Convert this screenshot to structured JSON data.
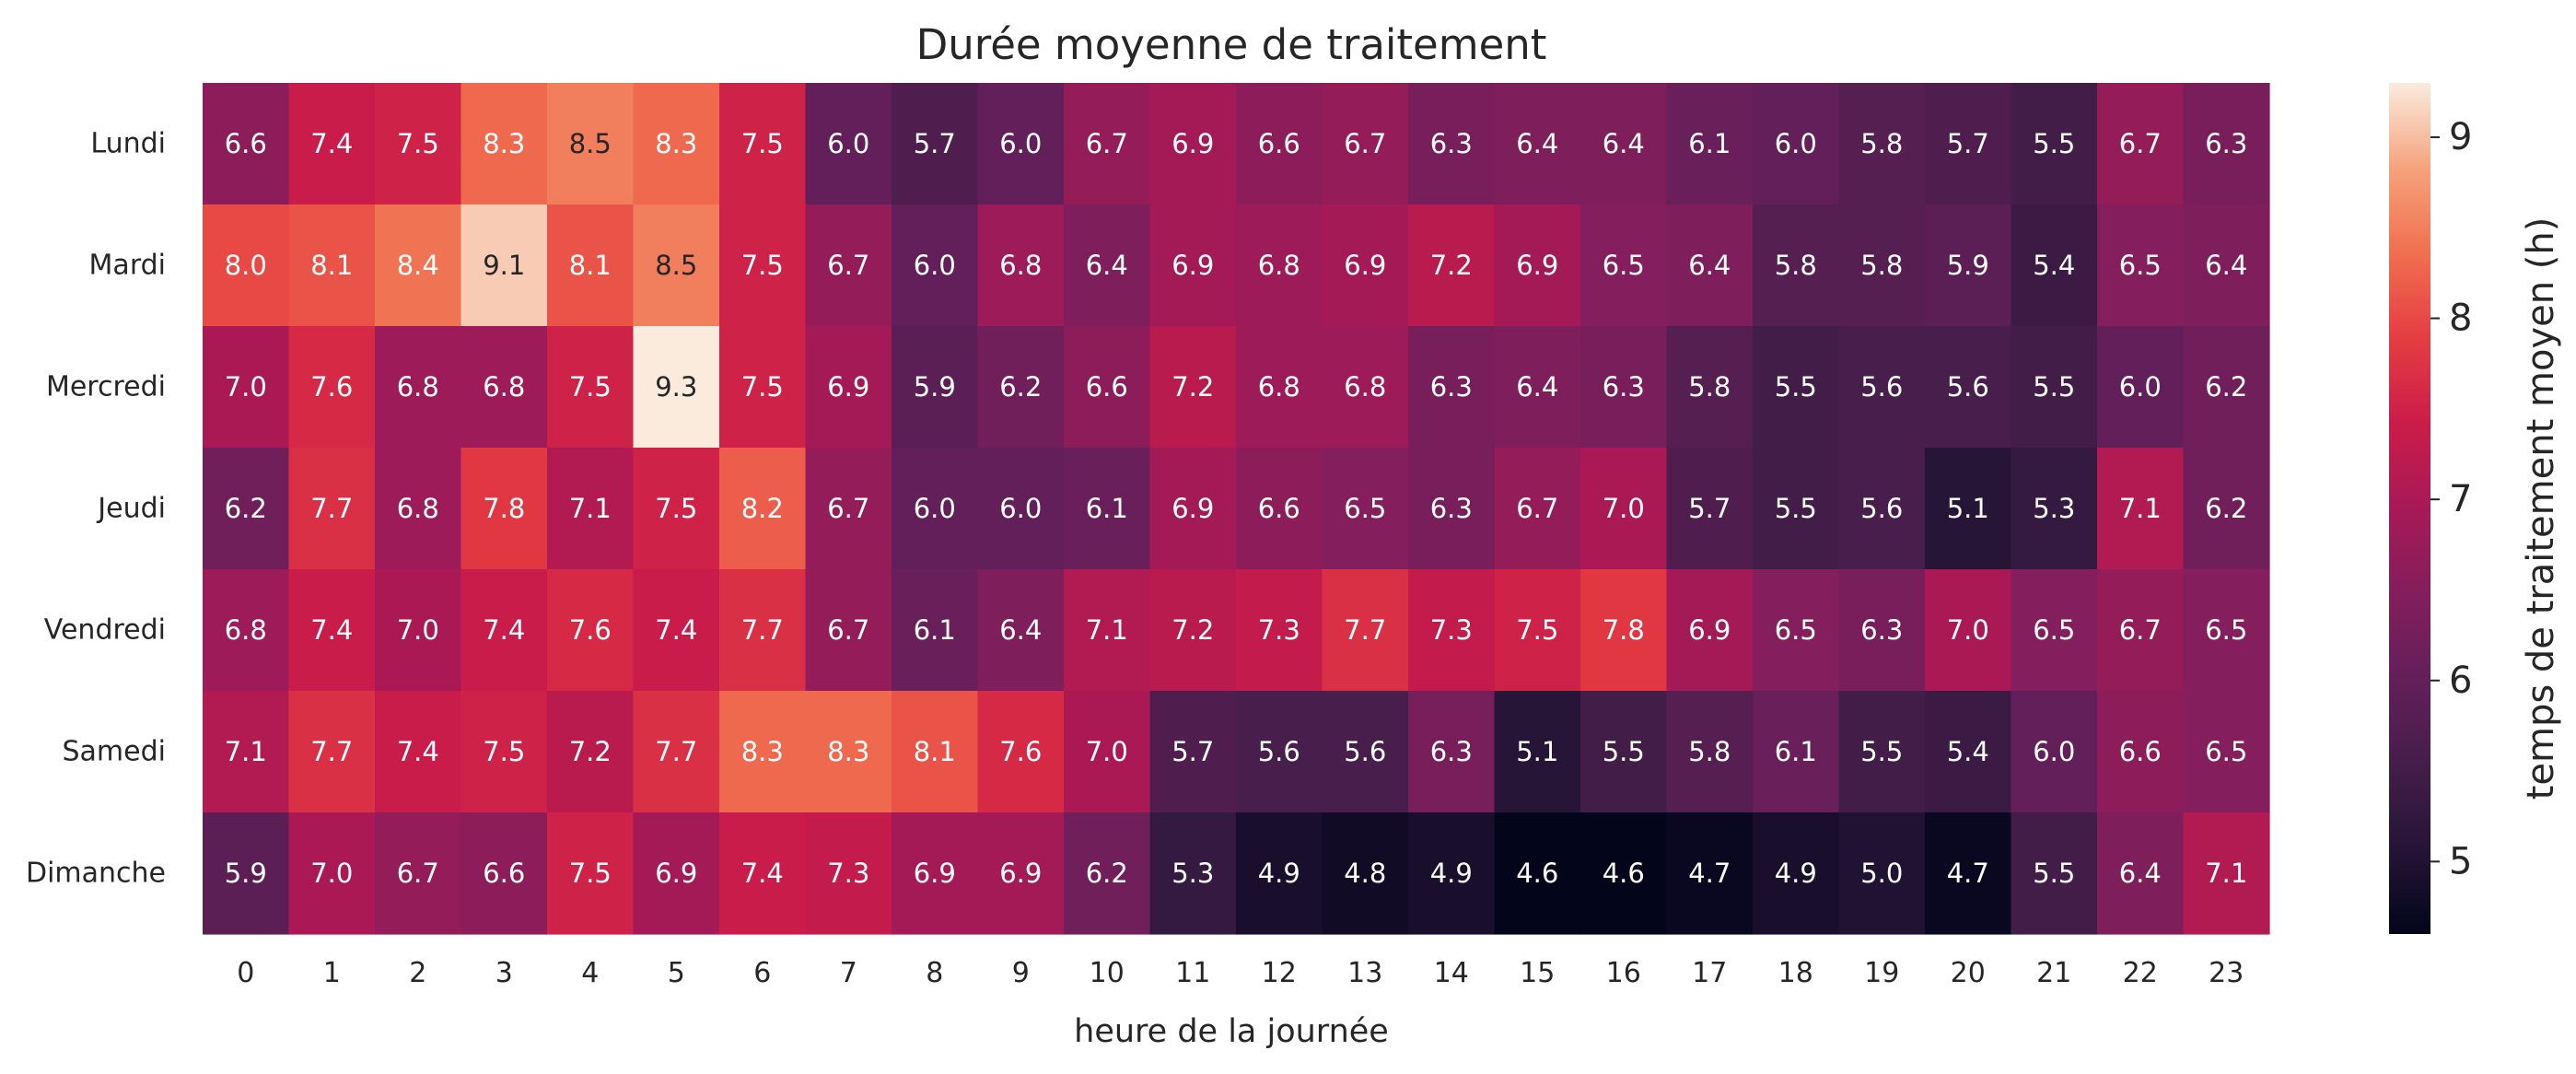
{
  "chart_data": {
    "type": "heatmap",
    "title": "Durée moyenne de traitement",
    "xlabel": "heure de la journée",
    "ylabel": "",
    "x_categories": [
      "0",
      "1",
      "2",
      "3",
      "4",
      "5",
      "6",
      "7",
      "8",
      "9",
      "10",
      "11",
      "12",
      "13",
      "14",
      "15",
      "16",
      "17",
      "18",
      "19",
      "20",
      "21",
      "22",
      "23"
    ],
    "y_categories": [
      "Lundi",
      "Mardi",
      "Mercredi",
      "Jeudi",
      "Vendredi",
      "Samedi",
      "Dimanche"
    ],
    "values": [
      [
        6.6,
        7.4,
        7.5,
        8.3,
        8.5,
        8.3,
        7.5,
        6.0,
        5.7,
        6.0,
        6.7,
        6.9,
        6.6,
        6.7,
        6.3,
        6.4,
        6.4,
        6.1,
        6.0,
        5.8,
        5.7,
        5.5,
        6.7,
        6.3
      ],
      [
        8.0,
        8.1,
        8.4,
        9.1,
        8.1,
        8.5,
        7.5,
        6.7,
        6.0,
        6.8,
        6.4,
        6.9,
        6.8,
        6.9,
        7.2,
        6.9,
        6.5,
        6.4,
        5.8,
        5.8,
        5.9,
        5.4,
        6.5,
        6.4
      ],
      [
        7.0,
        7.6,
        6.8,
        6.8,
        7.5,
        9.3,
        7.5,
        6.9,
        5.9,
        6.2,
        6.6,
        7.2,
        6.8,
        6.8,
        6.3,
        6.4,
        6.3,
        5.8,
        5.5,
        5.6,
        5.6,
        5.5,
        6.0,
        6.2
      ],
      [
        6.2,
        7.7,
        6.8,
        7.8,
        7.1,
        7.5,
        8.2,
        6.7,
        6.0,
        6.0,
        6.1,
        6.9,
        6.6,
        6.5,
        6.3,
        6.7,
        7.0,
        5.7,
        5.5,
        5.6,
        5.1,
        5.3,
        7.1,
        6.2
      ],
      [
        6.8,
        7.4,
        7.0,
        7.4,
        7.6,
        7.4,
        7.7,
        6.7,
        6.1,
        6.4,
        7.1,
        7.2,
        7.3,
        7.7,
        7.3,
        7.5,
        7.8,
        6.9,
        6.5,
        6.3,
        7.0,
        6.5,
        6.7,
        6.5
      ],
      [
        7.1,
        7.7,
        7.4,
        7.5,
        7.2,
        7.7,
        8.3,
        8.3,
        8.1,
        7.6,
        7.0,
        5.7,
        5.6,
        5.6,
        6.3,
        5.1,
        5.5,
        5.8,
        6.1,
        5.5,
        5.4,
        6.0,
        6.6,
        6.5
      ],
      [
        5.9,
        7.0,
        6.7,
        6.6,
        7.5,
        6.9,
        7.4,
        7.3,
        6.9,
        6.9,
        6.2,
        5.3,
        4.9,
        4.8,
        4.9,
        4.6,
        4.6,
        4.7,
        4.9,
        5.0,
        4.7,
        5.5,
        6.4,
        7.1
      ]
    ],
    "colorbar": {
      "label": "temps de traitement moyen (h)",
      "ticks": [
        "5",
        "6",
        "7",
        "8",
        "9"
      ],
      "range": [
        4.6,
        9.3
      ],
      "colormap": "rocket"
    },
    "grid": false
  }
}
